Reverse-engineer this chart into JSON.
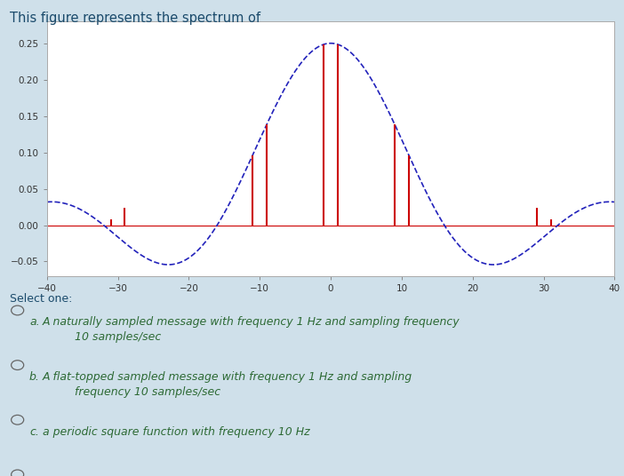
{
  "title": "This figure represents the spectrum of",
  "bg_color": "#cfe0ea",
  "plot_bg_color": "#ffffff",
  "title_color": "#1a4a6b",
  "title_fontsize": 10.5,
  "xlim": [
    -40,
    40
  ],
  "ylim": [
    -0.07,
    0.28
  ],
  "xticks": [
    -40,
    -30,
    -20,
    -10,
    0,
    10,
    20,
    30,
    40
  ],
  "yticks": [
    -0.05,
    0.0,
    0.05,
    0.1,
    0.15,
    0.2,
    0.25
  ],
  "sinc_color": "#2222bb",
  "sinc_amplitude": 0.25,
  "sinc_tau": 0.0625,
  "impulse_color": "#cc0000",
  "impulse_positions": [
    -31,
    -29,
    -11,
    -9,
    -1,
    1,
    9,
    11,
    29,
    31
  ],
  "baseline_color": "#cc0000",
  "options_color": "#2d6a35",
  "select_one_color": "#1a4a6b",
  "circle_color": "#666666",
  "green_box_color": "#1a6b30"
}
